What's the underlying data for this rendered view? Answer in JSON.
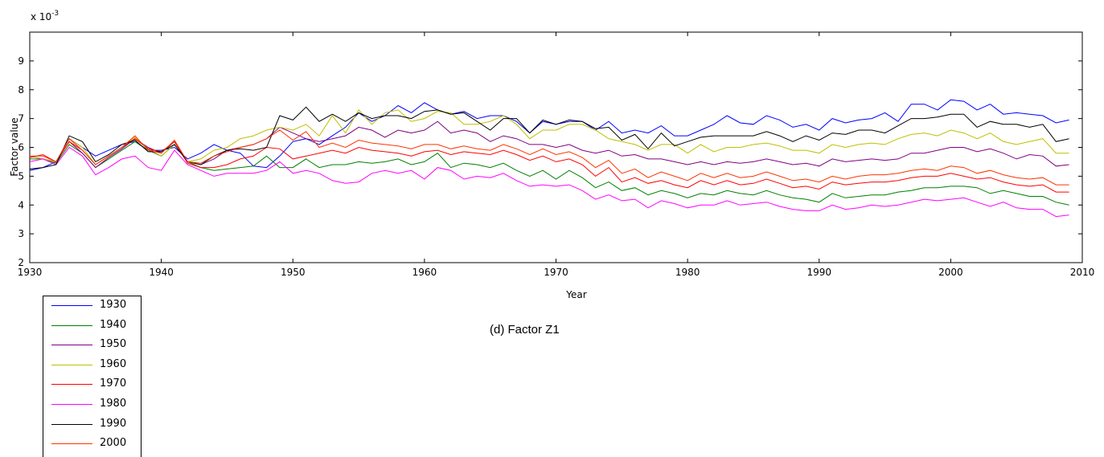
{
  "chart_data": {
    "type": "line",
    "xlabel": "Year",
    "ylabel": "Factor value",
    "exponent_label": "x 10",
    "exponent_power": "-3",
    "caption": "(d) Factor Z1",
    "xlim": [
      1930,
      2010
    ],
    "ylim": [
      2,
      10
    ],
    "xticks": [
      1930,
      1940,
      1950,
      1960,
      1970,
      1980,
      1990,
      2000,
      2010
    ],
    "yticks": [
      2,
      3,
      4,
      5,
      6,
      7,
      8,
      9
    ],
    "grid": false,
    "legend_position": "bottom-left outside",
    "x": [
      1930,
      1931,
      1932,
      1933,
      1934,
      1935,
      1936,
      1937,
      1938,
      1939,
      1940,
      1941,
      1942,
      1943,
      1944,
      1945,
      1946,
      1947,
      1948,
      1949,
      1950,
      1951,
      1952,
      1953,
      1954,
      1955,
      1956,
      1957,
      1958,
      1959,
      1960,
      1961,
      1962,
      1963,
      1964,
      1965,
      1966,
      1967,
      1968,
      1969,
      1970,
      1971,
      1972,
      1973,
      1974,
      1975,
      1976,
      1977,
      1978,
      1979,
      1980,
      1981,
      1982,
      1983,
      1984,
      1985,
      1986,
      1987,
      1988,
      1989,
      1990,
      1991,
      1992,
      1993,
      1994,
      1995,
      1996,
      1997,
      1998,
      1999,
      2000,
      2001,
      2002,
      2003,
      2004,
      2005,
      2006,
      2007,
      2008,
      2009
    ],
    "series": [
      {
        "name": "1930",
        "color": "#0000ff",
        "values": [
          5.2,
          5.3,
          5.5,
          6.3,
          6.0,
          5.7,
          5.9,
          6.1,
          6.2,
          5.9,
          5.9,
          6.0,
          5.6,
          5.8,
          6.1,
          5.9,
          5.8,
          5.35,
          5.3,
          5.7,
          6.2,
          6.3,
          6.1,
          6.4,
          6.7,
          7.2,
          6.9,
          7.1,
          7.45,
          7.2,
          7.55,
          7.3,
          7.15,
          7.25,
          7.0,
          7.1,
          7.1,
          6.9,
          6.5,
          6.9,
          6.8,
          6.9,
          6.9,
          6.6,
          6.9,
          6.5,
          6.6,
          6.5,
          6.75,
          6.4,
          6.4,
          6.6,
          6.8,
          7.1,
          6.85,
          6.8,
          7.1,
          6.95,
          6.7,
          6.8,
          6.6,
          7.0,
          6.85,
          6.95,
          7.0,
          7.2,
          6.9,
          7.5,
          7.5,
          7.3,
          7.65,
          7.6,
          7.3,
          7.5,
          7.15,
          7.2,
          7.15,
          7.1,
          6.85,
          6.95
        ]
      },
      {
        "name": "1940",
        "color": "#008000",
        "values": [
          5.6,
          5.6,
          5.45,
          6.1,
          5.8,
          5.3,
          5.6,
          5.9,
          6.2,
          5.9,
          5.7,
          6.1,
          5.5,
          5.3,
          5.2,
          5.25,
          5.3,
          5.35,
          5.7,
          5.3,
          5.3,
          5.6,
          5.3,
          5.4,
          5.4,
          5.5,
          5.45,
          5.5,
          5.6,
          5.4,
          5.5,
          5.8,
          5.3,
          5.45,
          5.4,
          5.3,
          5.45,
          5.2,
          5.0,
          5.2,
          4.9,
          5.2,
          4.95,
          4.6,
          4.8,
          4.5,
          4.6,
          4.35,
          4.5,
          4.4,
          4.25,
          4.4,
          4.35,
          4.5,
          4.4,
          4.35,
          4.5,
          4.35,
          4.25,
          4.2,
          4.1,
          4.4,
          4.25,
          4.3,
          4.35,
          4.35,
          4.45,
          4.5,
          4.6,
          4.6,
          4.65,
          4.65,
          4.6,
          4.4,
          4.5,
          4.4,
          4.3,
          4.3,
          4.1,
          4.0
        ]
      },
      {
        "name": "1950",
        "color": "#800080",
        "values": [
          5.7,
          5.6,
          5.5,
          6.2,
          5.8,
          5.3,
          5.65,
          5.95,
          6.3,
          6.0,
          5.8,
          6.2,
          5.5,
          5.4,
          5.6,
          5.9,
          6.0,
          6.1,
          6.3,
          6.7,
          6.5,
          6.3,
          6.2,
          6.3,
          6.4,
          6.7,
          6.6,
          6.35,
          6.6,
          6.5,
          6.6,
          6.9,
          6.5,
          6.6,
          6.5,
          6.2,
          6.4,
          6.3,
          6.1,
          6.1,
          6.0,
          6.1,
          5.9,
          5.8,
          5.9,
          5.7,
          5.75,
          5.6,
          5.6,
          5.5,
          5.4,
          5.5,
          5.4,
          5.5,
          5.45,
          5.5,
          5.6,
          5.5,
          5.4,
          5.45,
          5.35,
          5.6,
          5.5,
          5.55,
          5.6,
          5.55,
          5.6,
          5.8,
          5.8,
          5.9,
          6.0,
          6.0,
          5.85,
          5.95,
          5.8,
          5.6,
          5.75,
          5.7,
          5.35,
          5.4
        ]
      },
      {
        "name": "1960",
        "color": "#bfbf00",
        "values": [
          5.7,
          5.6,
          5.5,
          6.3,
          6.0,
          5.4,
          5.7,
          6.0,
          6.35,
          5.95,
          5.7,
          6.1,
          5.5,
          5.6,
          5.9,
          6.0,
          6.3,
          6.4,
          6.6,
          6.7,
          6.6,
          6.8,
          6.4,
          7.1,
          6.5,
          7.3,
          6.8,
          7.2,
          7.3,
          6.9,
          7.0,
          7.25,
          7.2,
          6.8,
          6.8,
          6.9,
          7.1,
          6.8,
          6.3,
          6.6,
          6.6,
          6.8,
          6.8,
          6.6,
          6.3,
          6.2,
          6.1,
          5.9,
          6.1,
          6.1,
          5.8,
          6.1,
          5.85,
          6.0,
          6.0,
          6.1,
          6.15,
          6.05,
          5.9,
          5.9,
          5.8,
          6.1,
          6.0,
          6.1,
          6.15,
          6.1,
          6.3,
          6.45,
          6.5,
          6.4,
          6.6,
          6.5,
          6.3,
          6.5,
          6.2,
          6.1,
          6.2,
          6.3,
          5.8,
          5.8
        ]
      },
      {
        "name": "1970",
        "color": "#ff0000",
        "values": [
          5.65,
          5.75,
          5.5,
          6.2,
          5.9,
          5.4,
          5.7,
          6.0,
          6.3,
          5.95,
          5.85,
          6.2,
          5.45,
          5.3,
          5.3,
          5.4,
          5.6,
          5.7,
          6.0,
          5.95,
          5.6,
          5.7,
          5.8,
          5.9,
          5.8,
          6.0,
          5.9,
          5.85,
          5.8,
          5.7,
          5.85,
          5.9,
          5.75,
          5.85,
          5.8,
          5.75,
          5.9,
          5.75,
          5.55,
          5.7,
          5.5,
          5.6,
          5.4,
          5.0,
          5.3,
          4.8,
          4.95,
          4.75,
          4.85,
          4.7,
          4.6,
          4.85,
          4.7,
          4.85,
          4.7,
          4.75,
          4.9,
          4.75,
          4.6,
          4.65,
          4.55,
          4.8,
          4.7,
          4.75,
          4.8,
          4.8,
          4.85,
          4.95,
          5.0,
          5.0,
          5.1,
          5.0,
          4.9,
          4.95,
          4.8,
          4.7,
          4.65,
          4.7,
          4.45,
          4.45
        ]
      },
      {
        "name": "1980",
        "color": "#ff00ff",
        "values": [
          5.5,
          5.6,
          5.4,
          6.0,
          5.7,
          5.05,
          5.3,
          5.6,
          5.7,
          5.3,
          5.2,
          5.9,
          5.4,
          5.2,
          5.0,
          5.1,
          5.1,
          5.1,
          5.2,
          5.5,
          5.1,
          5.2,
          5.1,
          4.85,
          4.75,
          4.8,
          5.1,
          5.2,
          5.1,
          5.2,
          4.9,
          5.3,
          5.2,
          4.9,
          5.0,
          4.95,
          5.1,
          4.85,
          4.65,
          4.7,
          4.65,
          4.7,
          4.5,
          4.2,
          4.35,
          4.15,
          4.2,
          3.9,
          4.15,
          4.05,
          3.9,
          4.0,
          4.0,
          4.15,
          4.0,
          4.05,
          4.1,
          3.95,
          3.85,
          3.8,
          3.8,
          4.0,
          3.85,
          3.9,
          4.0,
          3.95,
          4.0,
          4.1,
          4.2,
          4.15,
          4.2,
          4.25,
          4.1,
          3.95,
          4.1,
          3.9,
          3.85,
          3.85,
          3.6,
          3.65
        ]
      },
      {
        "name": "1990",
        "color": "#000000",
        "values": [
          5.25,
          5.3,
          5.4,
          6.4,
          6.2,
          5.5,
          5.75,
          6.1,
          6.25,
          5.85,
          5.85,
          6.1,
          5.5,
          5.4,
          5.7,
          5.9,
          5.95,
          5.9,
          6.0,
          7.1,
          6.95,
          7.4,
          6.9,
          7.15,
          6.9,
          7.2,
          7.0,
          7.1,
          7.1,
          7.0,
          7.25,
          7.3,
          7.15,
          7.2,
          6.9,
          6.6,
          7.0,
          7.0,
          6.5,
          6.95,
          6.8,
          6.95,
          6.9,
          6.65,
          6.7,
          6.25,
          6.45,
          5.95,
          6.5,
          6.05,
          6.2,
          6.35,
          6.4,
          6.4,
          6.4,
          6.4,
          6.55,
          6.4,
          6.2,
          6.4,
          6.25,
          6.5,
          6.45,
          6.6,
          6.6,
          6.5,
          6.75,
          7.0,
          7.0,
          7.05,
          7.15,
          7.15,
          6.7,
          6.9,
          6.8,
          6.8,
          6.7,
          6.8,
          6.2,
          6.3
        ]
      },
      {
        "name": "2000",
        "color": "#ff3300",
        "values": [
          5.7,
          5.7,
          5.5,
          6.3,
          5.9,
          5.4,
          5.7,
          6.0,
          6.4,
          5.9,
          5.8,
          6.25,
          5.5,
          5.45,
          5.7,
          5.85,
          6.0,
          6.1,
          6.3,
          6.6,
          6.25,
          6.55,
          6.0,
          6.15,
          6.0,
          6.25,
          6.15,
          6.1,
          6.05,
          5.95,
          6.1,
          6.1,
          5.95,
          6.05,
          5.95,
          5.9,
          6.1,
          5.95,
          5.75,
          5.95,
          5.75,
          5.85,
          5.65,
          5.3,
          5.55,
          5.1,
          5.25,
          4.95,
          5.15,
          5.0,
          4.85,
          5.1,
          4.95,
          5.1,
          4.95,
          5.0,
          5.15,
          5.0,
          4.85,
          4.9,
          4.8,
          5.0,
          4.9,
          5.0,
          5.05,
          5.05,
          5.1,
          5.2,
          5.25,
          5.2,
          5.35,
          5.3,
          5.1,
          5.2,
          5.05,
          4.95,
          4.9,
          4.95,
          4.7,
          4.7
        ]
      }
    ]
  }
}
